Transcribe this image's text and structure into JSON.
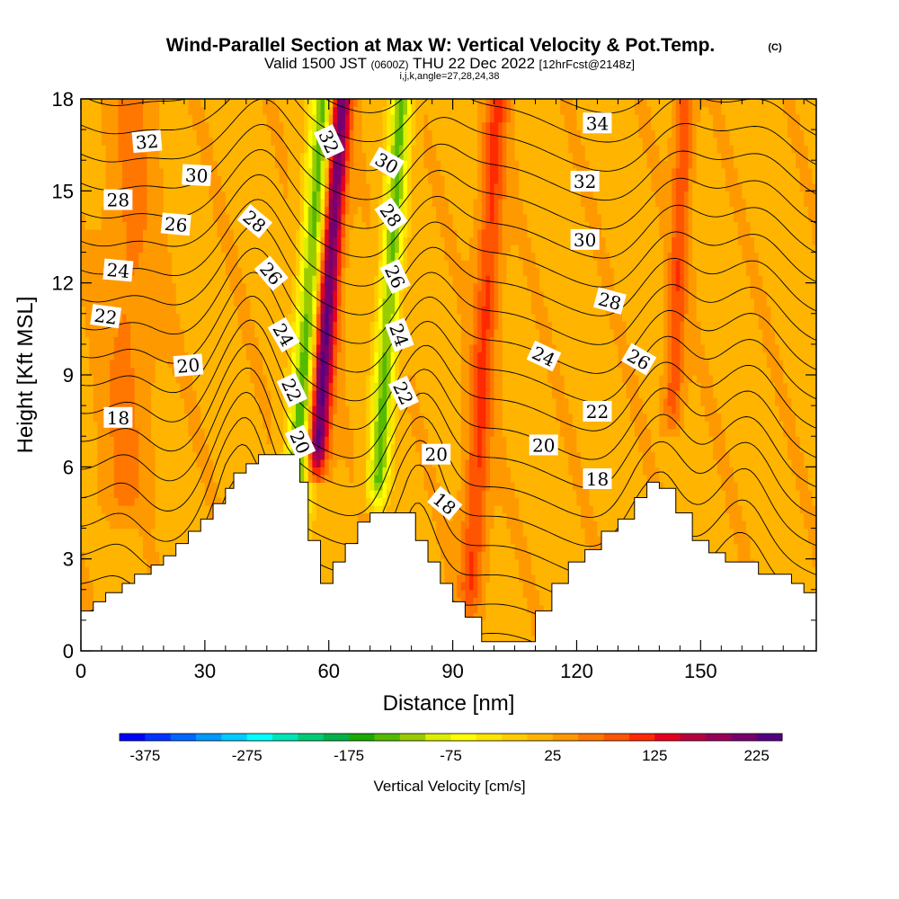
{
  "header": {
    "title": "Wind-Parallel Section at Max W: Vertical Velocity & Pot.Temp.",
    "title_mark": "(C)",
    "valid_prefix": "Valid 1500 JST",
    "valid_utc": "(0600Z)",
    "valid_date": "THU 22 Dec 2022",
    "forecast": "[12hrFcst@2148z]",
    "indices": "i,j,k,angle=27,28,24,38"
  },
  "chart_data": {
    "type": "heatmap",
    "xlabel": "Distance [nm]",
    "ylabel": "Height [Kft MSL]",
    "xlim": [
      0,
      178
    ],
    "ylim": [
      0,
      18
    ],
    "x_ticks": [
      0,
      30,
      60,
      90,
      120,
      150
    ],
    "y_ticks": [
      0,
      3,
      6,
      9,
      12,
      15,
      18
    ],
    "x_tick_labels": [
      "0",
      "30",
      "60",
      "90",
      "120",
      "150"
    ],
    "y_tick_labels": [
      "0",
      "3",
      "6",
      "9",
      "12",
      "15",
      "18"
    ],
    "colorbar": {
      "label": "Vertical Velocity [cm/s]",
      "min": -400,
      "max": 250,
      "step": 25,
      "tick_values": [
        -375,
        -275,
        -175,
        -75,
        25,
        125,
        225
      ],
      "tick_labels": [
        "-375",
        "-275",
        "-175",
        "-75",
        "25",
        "125",
        "225"
      ],
      "colors": [
        "#0000ff",
        "#0033ff",
        "#0066ff",
        "#0099ff",
        "#00ccff",
        "#00ffff",
        "#00e5b8",
        "#00cc77",
        "#00b34a",
        "#1aaa00",
        "#55bb00",
        "#99cc00",
        "#ddee00",
        "#ffff00",
        "#ffe500",
        "#ffcc00",
        "#ffb400",
        "#ff9900",
        "#ff7700",
        "#ff5500",
        "#ff2a00",
        "#e60020",
        "#b80040",
        "#99005a",
        "#77006e",
        "#550080"
      ]
    },
    "velocity_features": [
      {
        "x": 56.5,
        "x_slope_per_kft": 0.5,
        "y_start": 5.5,
        "peak_cm_s": 240,
        "width_nm": 2.6
      },
      {
        "x": 51.0,
        "x_slope_per_kft": 0.55,
        "y_start": 3.0,
        "peak_cm_s": -170,
        "width_nm": 3.2
      },
      {
        "x": 71.5,
        "x_slope_per_kft": 0.45,
        "y_start": 4.5,
        "peak_cm_s": -150,
        "width_nm": 2.6
      },
      {
        "x": 94.0,
        "x_slope_per_kft": 0.4,
        "y_start": 1.0,
        "peak_cm_s": 85,
        "width_nm": 2.8
      },
      {
        "x": 143.0,
        "x_slope_per_kft": 0.3,
        "y_start": 7.0,
        "peak_cm_s": 75,
        "width_nm": 2.2
      },
      {
        "x": 10.0,
        "x_slope_per_kft": 0.2,
        "y_start": 4.0,
        "peak_cm_s": 35,
        "width_nm": 6.0
      }
    ],
    "terrain": [
      {
        "x": 0,
        "height": 1.3
      },
      {
        "x": 3,
        "height": 1.6
      },
      {
        "x": 6,
        "height": 1.9
      },
      {
        "x": 10,
        "height": 2.2
      },
      {
        "x": 13,
        "height": 2.5
      },
      {
        "x": 17,
        "height": 2.8
      },
      {
        "x": 20,
        "height": 3.1
      },
      {
        "x": 23,
        "height": 3.5
      },
      {
        "x": 26,
        "height": 3.9
      },
      {
        "x": 29,
        "height": 4.3
      },
      {
        "x": 32,
        "height": 4.8
      },
      {
        "x": 35,
        "height": 5.3
      },
      {
        "x": 37,
        "height": 5.8
      },
      {
        "x": 40,
        "height": 6.1
      },
      {
        "x": 43,
        "height": 6.4
      },
      {
        "x": 46,
        "height": 6.4
      },
      {
        "x": 50,
        "height": 6.4
      },
      {
        "x": 53,
        "height": 5.5
      },
      {
        "x": 55,
        "height": 3.6
      },
      {
        "x": 58,
        "height": 2.2
      },
      {
        "x": 61,
        "height": 2.9
      },
      {
        "x": 64,
        "height": 3.5
      },
      {
        "x": 67,
        "height": 4.2
      },
      {
        "x": 70,
        "height": 4.5
      },
      {
        "x": 74,
        "height": 4.5
      },
      {
        "x": 78,
        "height": 4.5
      },
      {
        "x": 81,
        "height": 3.6
      },
      {
        "x": 84,
        "height": 2.9
      },
      {
        "x": 87,
        "height": 2.2
      },
      {
        "x": 90,
        "height": 1.6
      },
      {
        "x": 93,
        "height": 1.1
      },
      {
        "x": 97,
        "height": 0.3
      },
      {
        "x": 101,
        "height": 0.3
      },
      {
        "x": 105,
        "height": 0.3
      },
      {
        "x": 110,
        "height": 1.3
      },
      {
        "x": 114,
        "height": 2.2
      },
      {
        "x": 118,
        "height": 2.9
      },
      {
        "x": 122,
        "height": 3.3
      },
      {
        "x": 126,
        "height": 3.9
      },
      {
        "x": 130,
        "height": 4.3
      },
      {
        "x": 134,
        "height": 5.0
      },
      {
        "x": 137,
        "height": 5.5
      },
      {
        "x": 140,
        "height": 5.3
      },
      {
        "x": 144,
        "height": 4.5
      },
      {
        "x": 148,
        "height": 3.6
      },
      {
        "x": 152,
        "height": 3.2
      },
      {
        "x": 156,
        "height": 2.9
      },
      {
        "x": 160,
        "height": 2.9
      },
      {
        "x": 164,
        "height": 2.5
      },
      {
        "x": 168,
        "height": 2.5
      },
      {
        "x": 172,
        "height": 2.2
      },
      {
        "x": 175,
        "height": 1.9
      },
      {
        "x": 178,
        "height": 1.9
      }
    ],
    "isentrope_theta_start": 10,
    "isentrope_theta_end": 40,
    "isentrope_theta_step": 1,
    "contour_labels": [
      {
        "text": "32",
        "x": 16,
        "y": 16.6,
        "angle": -5
      },
      {
        "text": "30",
        "x": 28,
        "y": 15.5,
        "angle": 3
      },
      {
        "text": "28",
        "x": 9,
        "y": 14.7,
        "angle": 0
      },
      {
        "text": "26",
        "x": 23,
        "y": 13.9,
        "angle": 5
      },
      {
        "text": "24",
        "x": 9,
        "y": 12.4,
        "angle": 5
      },
      {
        "text": "22",
        "x": 6,
        "y": 10.9,
        "angle": 8
      },
      {
        "text": "20",
        "x": 26,
        "y": 9.3,
        "angle": -5
      },
      {
        "text": "18",
        "x": 9,
        "y": 7.6,
        "angle": 0
      },
      {
        "text": "28",
        "x": 42,
        "y": 14.0,
        "angle": 40
      },
      {
        "text": "26",
        "x": 46,
        "y": 12.3,
        "angle": 50
      },
      {
        "text": "24",
        "x": 49,
        "y": 10.3,
        "angle": 60
      },
      {
        "text": "22",
        "x": 51,
        "y": 8.5,
        "angle": 65
      },
      {
        "text": "20",
        "x": 53,
        "y": 6.8,
        "angle": 65
      },
      {
        "text": "32",
        "x": 60,
        "y": 16.6,
        "angle": 65
      },
      {
        "text": "30",
        "x": 74,
        "y": 15.9,
        "angle": 30
      },
      {
        "text": "28",
        "x": 75,
        "y": 14.2,
        "angle": 55
      },
      {
        "text": "26",
        "x": 76,
        "y": 12.2,
        "angle": 65
      },
      {
        "text": "24",
        "x": 77,
        "y": 10.3,
        "angle": 70
      },
      {
        "text": "22",
        "x": 78,
        "y": 8.4,
        "angle": 65
      },
      {
        "text": "20",
        "x": 86,
        "y": 6.4,
        "angle": 0
      },
      {
        "text": "18",
        "x": 88,
        "y": 4.8,
        "angle": 40
      },
      {
        "text": "34",
        "x": 125,
        "y": 17.2,
        "angle": 0
      },
      {
        "text": "32",
        "x": 122,
        "y": 15.3,
        "angle": 0
      },
      {
        "text": "30",
        "x": 122,
        "y": 13.4,
        "angle": 0
      },
      {
        "text": "28",
        "x": 128,
        "y": 11.4,
        "angle": 15
      },
      {
        "text": "24",
        "x": 112,
        "y": 9.6,
        "angle": 25
      },
      {
        "text": "26",
        "x": 135,
        "y": 9.5,
        "angle": 30
      },
      {
        "text": "22",
        "x": 125,
        "y": 7.8,
        "angle": 0
      },
      {
        "text": "20",
        "x": 112,
        "y": 6.7,
        "angle": 0
      },
      {
        "text": "18",
        "x": 125,
        "y": 5.6,
        "angle": 0
      }
    ]
  }
}
